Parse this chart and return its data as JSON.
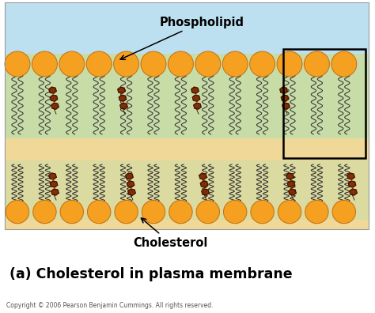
{
  "fig_width": 4.74,
  "fig_height": 3.96,
  "dpi": 100,
  "bg_color": "#ffffff",
  "sky_color": "#bde0f0",
  "mem_green_color": "#c8dca8",
  "tan_color": "#f0d898",
  "head_color": "#f5a020",
  "head_edge_color": "#c07010",
  "tail_color": "#303030",
  "chol_color": "#7a2800",
  "chol_edge_color": "#2a0800",
  "box_edge": "#000000",
  "diag_border": "#999999",
  "title": "(a) Cholesterol in plasma membrane",
  "title_fontsize": 12.5,
  "copyright": "Copyright © 2006 Pearson Benjamin Cummings. All rights reserved.",
  "copyright_fontsize": 5.5,
  "label_phospholipid": "Phospholipid",
  "label_cholesterol": "Cholesterol",
  "label_fontsize": 10.5
}
